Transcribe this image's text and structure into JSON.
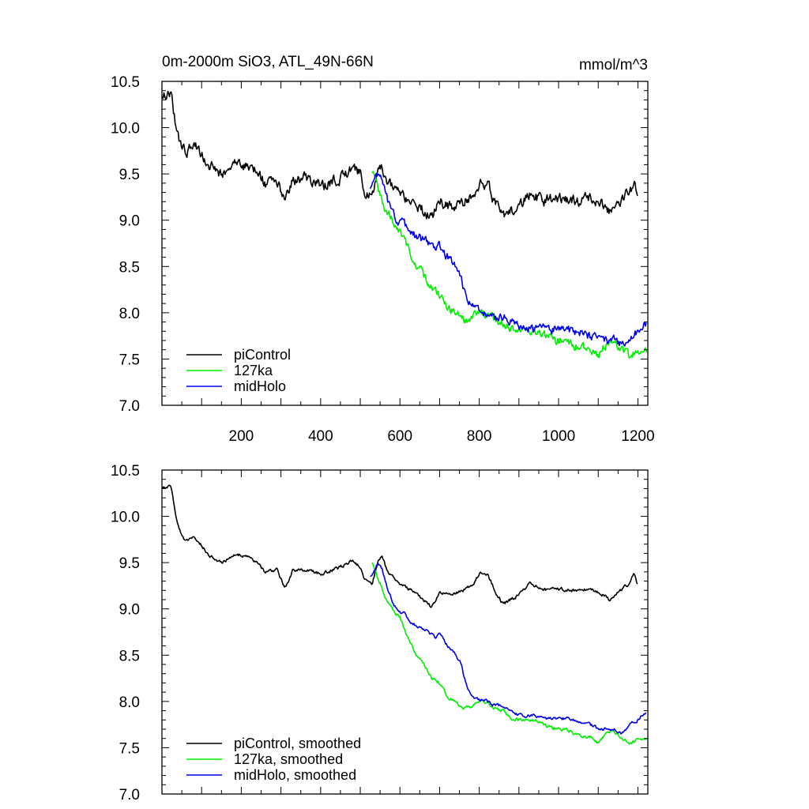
{
  "chart_data": [
    {
      "type": "line",
      "title_left": "0m-2000m SiO3, ATL_49N-66N",
      "title_right": "mmol/m^3",
      "xlim": [
        0,
        1225
      ],
      "ylim": [
        7.0,
        10.5
      ],
      "xticks": [
        200,
        400,
        600,
        800,
        1000,
        1200
      ],
      "xtick_labels": [
        "200",
        "400",
        "600",
        "800",
        "1000",
        "1200"
      ],
      "yticks": [
        7.0,
        7.5,
        8.0,
        8.5,
        9.0,
        9.5,
        10.0,
        10.5
      ],
      "ytick_labels": [
        "7.0",
        "7.5",
        "8.0",
        "8.5",
        "9.0",
        "9.5",
        "10.0",
        "10.5"
      ],
      "legend_position": "bottom-left",
      "series": [
        {
          "name": "piControl",
          "color": "#000000",
          "noise": 0.05,
          "x": [
            1,
            10,
            20,
            25,
            30,
            40,
            50,
            60,
            80,
            100,
            120,
            150,
            180,
            200,
            230,
            260,
            290,
            310,
            330,
            360,
            400,
            450,
            480,
            500,
            510,
            530,
            545,
            555,
            570,
            600,
            630,
            660,
            680,
            700,
            730,
            760,
            780,
            800,
            820,
            840,
            860,
            880,
            900,
            930,
            960,
            1000,
            1040,
            1080,
            1100,
            1130,
            1160,
            1180,
            1190,
            1200
          ],
          "values": [
            10.35,
            10.33,
            10.35,
            10.3,
            10.15,
            9.9,
            9.8,
            9.72,
            9.82,
            9.7,
            9.58,
            9.5,
            9.6,
            9.6,
            9.55,
            9.4,
            9.45,
            9.2,
            9.45,
            9.45,
            9.38,
            9.45,
            9.55,
            9.5,
            9.27,
            9.25,
            9.55,
            9.6,
            9.4,
            9.3,
            9.2,
            9.1,
            9.0,
            9.2,
            9.15,
            9.2,
            9.25,
            9.4,
            9.4,
            9.2,
            9.05,
            9.1,
            9.15,
            9.3,
            9.2,
            9.25,
            9.2,
            9.25,
            9.2,
            9.1,
            9.25,
            9.3,
            9.4,
            9.25
          ]
        },
        {
          "name": "127ka",
          "color": "#00ee00",
          "noise": 0.04,
          "x": [
            530,
            540,
            550,
            560,
            580,
            600,
            620,
            640,
            660,
            680,
            700,
            720,
            740,
            760,
            780,
            800,
            820,
            840,
            860,
            880,
            900,
            940,
            980,
            1000,
            1020,
            1040,
            1060,
            1080,
            1100,
            1120,
            1140,
            1160,
            1180,
            1200,
            1210,
            1222
          ],
          "values": [
            9.52,
            9.4,
            9.3,
            9.15,
            9.0,
            8.9,
            8.7,
            8.52,
            8.4,
            8.25,
            8.2,
            8.05,
            8.0,
            7.92,
            7.95,
            8.0,
            7.98,
            7.92,
            7.9,
            7.82,
            7.8,
            7.8,
            7.72,
            7.7,
            7.7,
            7.65,
            7.62,
            7.62,
            7.55,
            7.65,
            7.7,
            7.6,
            7.55,
            7.58,
            7.62,
            7.58
          ]
        },
        {
          "name": "midHolo",
          "color": "#0000ee",
          "noise": 0.04,
          "x": [
            525,
            535,
            545,
            555,
            570,
            590,
            610,
            630,
            650,
            670,
            690,
            700,
            720,
            740,
            755,
            765,
            775,
            785,
            800,
            820,
            840,
            860,
            880,
            900,
            930,
            960,
            1000,
            1040,
            1080,
            1100,
            1120,
            1140,
            1160,
            1180,
            1200,
            1210,
            1222
          ],
          "values": [
            9.35,
            9.4,
            9.52,
            9.45,
            9.2,
            9.0,
            8.95,
            8.85,
            8.8,
            8.75,
            8.7,
            8.72,
            8.6,
            8.5,
            8.4,
            8.2,
            8.1,
            8.05,
            8.02,
            8.0,
            7.95,
            7.95,
            7.9,
            7.85,
            7.85,
            7.82,
            7.82,
            7.8,
            7.75,
            7.7,
            7.7,
            7.7,
            7.65,
            7.75,
            7.8,
            7.85,
            7.9
          ]
        }
      ]
    },
    {
      "type": "line",
      "xlim": [
        0,
        1225
      ],
      "ylim": [
        7.0,
        10.5
      ],
      "xticks": [
        200,
        400,
        600,
        800,
        1000,
        1200
      ],
      "yticks": [
        7.0,
        7.5,
        8.0,
        8.5,
        9.0,
        9.5,
        10.0,
        10.5
      ],
      "ytick_labels": [
        "7.0",
        "7.5",
        "8.0",
        "8.5",
        "9.0",
        "9.5",
        "10.0",
        "10.5"
      ],
      "legend_position": "bottom-left",
      "series": [
        {
          "name": "piControl, smoothed",
          "color": "#000000",
          "noise": 0.015,
          "x": [
            1,
            10,
            20,
            25,
            30,
            40,
            50,
            60,
            80,
            100,
            120,
            150,
            180,
            200,
            230,
            260,
            290,
            310,
            330,
            360,
            400,
            450,
            480,
            500,
            510,
            530,
            545,
            555,
            570,
            600,
            630,
            660,
            680,
            700,
            730,
            760,
            780,
            800,
            820,
            840,
            860,
            880,
            900,
            930,
            960,
            1000,
            1040,
            1080,
            1100,
            1130,
            1160,
            1180,
            1190,
            1200
          ],
          "values": [
            10.32,
            10.32,
            10.33,
            10.28,
            10.15,
            9.9,
            9.78,
            9.72,
            9.8,
            9.68,
            9.58,
            9.5,
            9.58,
            9.58,
            9.53,
            9.4,
            9.43,
            9.22,
            9.42,
            9.42,
            9.38,
            9.45,
            9.52,
            9.45,
            9.3,
            9.28,
            9.52,
            9.55,
            9.4,
            9.28,
            9.2,
            9.1,
            9.02,
            9.18,
            9.15,
            9.2,
            9.25,
            9.38,
            9.38,
            9.2,
            9.05,
            9.1,
            9.15,
            9.28,
            9.2,
            9.22,
            9.2,
            9.22,
            9.18,
            9.1,
            9.22,
            9.28,
            9.38,
            9.25
          ]
        },
        {
          "name": "127ka, smoothed",
          "color": "#00ee00",
          "noise": 0.015,
          "x": [
            530,
            540,
            550,
            560,
            580,
            600,
            620,
            640,
            660,
            680,
            700,
            720,
            740,
            760,
            780,
            800,
            820,
            840,
            860,
            880,
            900,
            940,
            980,
            1000,
            1020,
            1040,
            1060,
            1080,
            1100,
            1120,
            1140,
            1160,
            1180,
            1200,
            1210,
            1222
          ],
          "values": [
            9.5,
            9.38,
            9.28,
            9.15,
            9.0,
            8.9,
            8.7,
            8.52,
            8.4,
            8.25,
            8.2,
            8.05,
            8.0,
            7.92,
            7.95,
            8.0,
            7.98,
            7.92,
            7.9,
            7.82,
            7.8,
            7.8,
            7.72,
            7.7,
            7.7,
            7.65,
            7.62,
            7.62,
            7.55,
            7.65,
            7.68,
            7.6,
            7.55,
            7.58,
            7.6,
            7.58
          ]
        },
        {
          "name": "midHolo, smoothed",
          "color": "#0000ee",
          "noise": 0.015,
          "x": [
            525,
            535,
            545,
            555,
            570,
            590,
            610,
            630,
            650,
            670,
            690,
            700,
            720,
            740,
            755,
            765,
            775,
            785,
            800,
            820,
            840,
            860,
            880,
            900,
            930,
            960,
            1000,
            1040,
            1080,
            1100,
            1120,
            1140,
            1160,
            1180,
            1200,
            1210,
            1222
          ],
          "values": [
            9.35,
            9.4,
            9.5,
            9.43,
            9.2,
            9.0,
            8.95,
            8.85,
            8.8,
            8.75,
            8.7,
            8.72,
            8.6,
            8.5,
            8.4,
            8.2,
            8.1,
            8.05,
            8.02,
            8.0,
            7.95,
            7.95,
            7.9,
            7.85,
            7.85,
            7.82,
            7.82,
            7.8,
            7.75,
            7.7,
            7.7,
            7.7,
            7.65,
            7.75,
            7.8,
            7.85,
            7.88
          ]
        }
      ]
    }
  ]
}
